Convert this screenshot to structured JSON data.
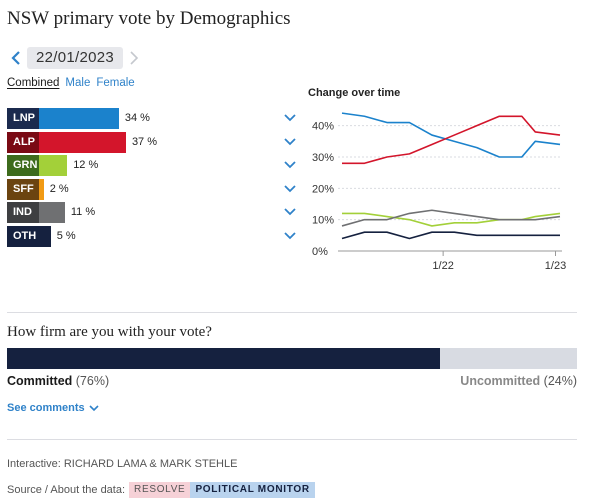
{
  "title": "NSW primary vote by Demographics",
  "date": "22/01/2023",
  "tabs": [
    {
      "label": "Combined",
      "active": true
    },
    {
      "label": "Male",
      "active": false
    },
    {
      "label": "Female",
      "active": false
    }
  ],
  "parties": [
    {
      "name": "LNP",
      "value": 34,
      "label": "34 %",
      "color": "#1b82cc",
      "badge_color": "#1b2a4e"
    },
    {
      "name": "ALP",
      "value": 37,
      "label": "37 %",
      "color": "#d3152b",
      "badge_color": "#7a0a14"
    },
    {
      "name": "GRN",
      "value": 12,
      "label": "12 %",
      "color": "#a3d039",
      "badge_color": "#3d6b1c"
    },
    {
      "name": "SFF",
      "value": 2,
      "label": "2 %",
      "color": "#f19a14",
      "badge_color": "#6b4410"
    },
    {
      "name": "IND",
      "value": 11,
      "label": "11 %",
      "color": "#6f7072",
      "badge_color": "#3e3f41"
    },
    {
      "name": "OTH",
      "value": 5,
      "label": "5 %",
      "color": "#15213f",
      "badge_color": "#15213f"
    }
  ],
  "chart_data": {
    "type": "line",
    "title": "Change over time",
    "xlabel": "",
    "ylabel": "",
    "ylim": [
      0,
      45
    ],
    "yticks": [
      0,
      10,
      20,
      30,
      40
    ],
    "ytick_labels": [
      "0%",
      "10%",
      "20%",
      "30%",
      "40%"
    ],
    "xticks": [
      {
        "at": 4.5,
        "label": "1/22"
      },
      {
        "at": 9.5,
        "label": "1/23"
      }
    ],
    "x": [
      0,
      1,
      2,
      3,
      4,
      5,
      6,
      7,
      8,
      8.6,
      9.7
    ],
    "series": [
      {
        "name": "LNP",
        "color": "#1b82cc",
        "values": [
          44,
          43,
          41,
          41,
          37,
          35,
          33,
          30,
          30,
          35,
          34
        ]
      },
      {
        "name": "ALP",
        "color": "#d3152b",
        "values": [
          28,
          28,
          30,
          31,
          34,
          37,
          40,
          43,
          43,
          38,
          37
        ]
      },
      {
        "name": "GRN",
        "color": "#a3d039",
        "values": [
          12,
          12,
          11,
          10,
          8,
          9,
          9,
          10,
          10,
          11,
          12
        ]
      },
      {
        "name": "IND",
        "color": "#6f7072",
        "values": [
          8,
          10,
          10,
          12,
          13,
          12,
          11,
          10,
          10,
          10,
          11
        ]
      },
      {
        "name": "OTH",
        "color": "#15213f",
        "values": [
          4,
          6,
          6,
          4,
          6,
          6,
          5,
          5,
          5,
          5,
          5
        ]
      }
    ]
  },
  "firmness": {
    "title": "How firm are you with your vote?",
    "committed_label": "Committed",
    "committed_pct_label": "(76%)",
    "committed_value": 76,
    "uncommitted_label": "Uncommitted",
    "uncommitted_pct_label": "(24%)",
    "uncommitted_value": 24,
    "committed_color": "#15213f",
    "uncommitted_color": "#d8dbe2"
  },
  "see_comments": "See comments",
  "credit": "Interactive: RICHARD LAMA & MARK STEHLE",
  "source_label": "Source / About the data:",
  "source_badge_1": "RESOLVE",
  "source_badge_2": "POLITICAL MONITOR"
}
